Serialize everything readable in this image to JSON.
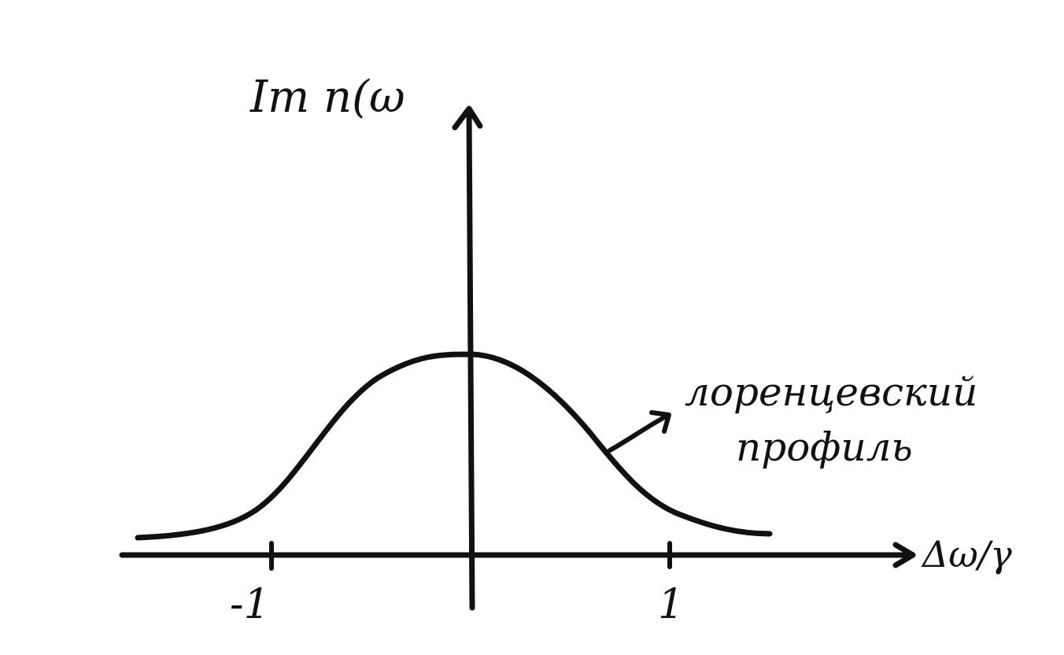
{
  "diagram": {
    "y_axis_label": "Im n(ω",
    "x_axis_label": "Δω/γ",
    "tick_labels": [
      "-1",
      "1"
    ],
    "curve_label": {
      "line1": "лоренцевский",
      "line2": "профиль"
    },
    "colors": {
      "ink": "#111111",
      "background": "#ffffff"
    }
  }
}
